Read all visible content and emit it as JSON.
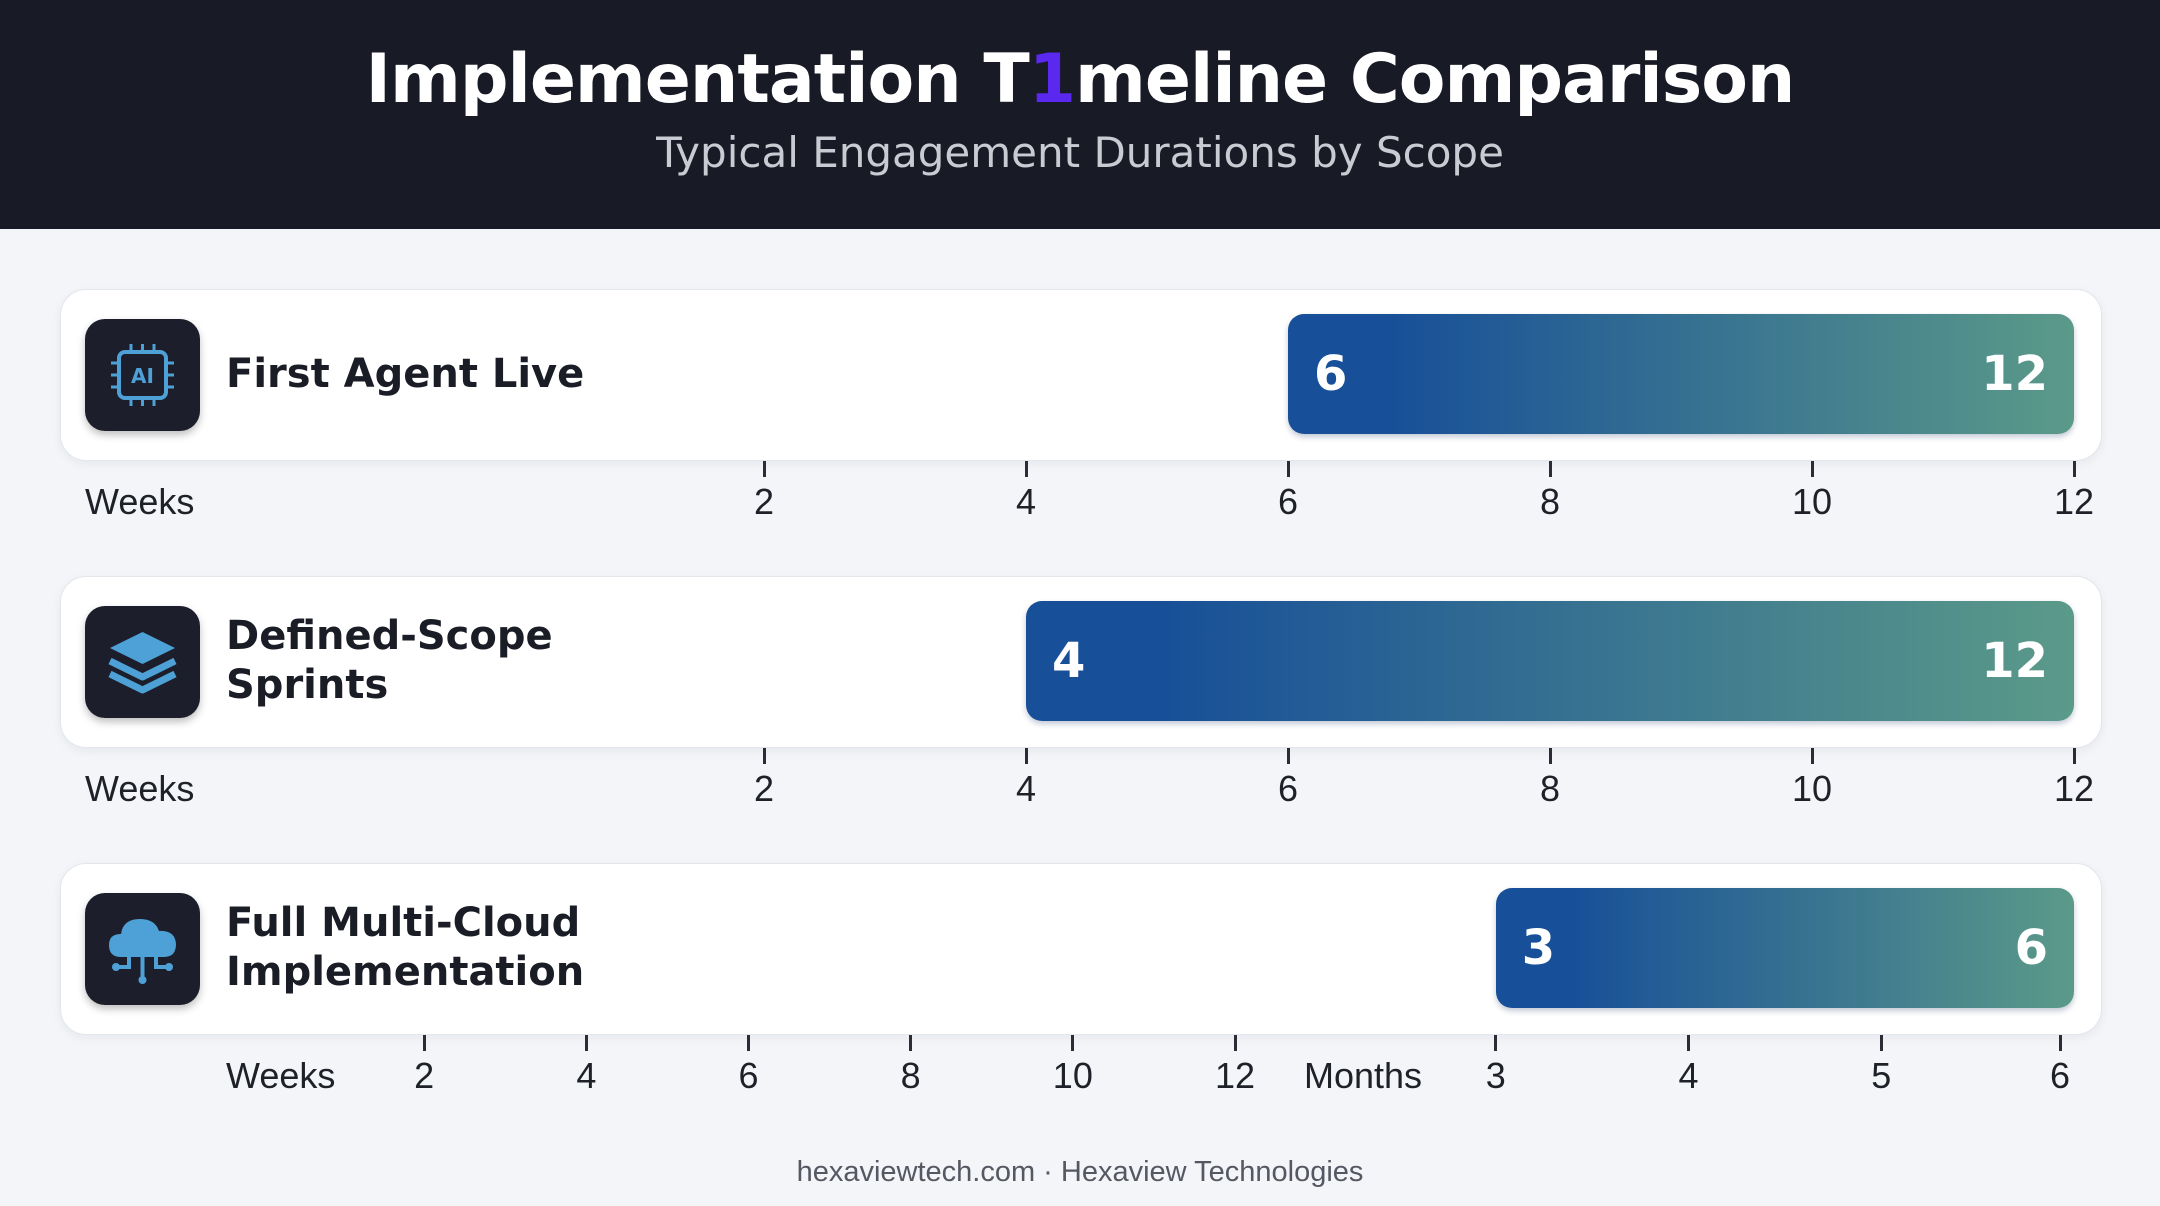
{
  "header": {
    "title": "Implementation T1meline Comparison",
    "subtitle": "Typical Engagement Durations by Scope"
  },
  "footer": {
    "text": "hexaviewtech.com · Hexaview Technologies"
  },
  "colors": {
    "header_bg": "#181a26",
    "title_highlight": "#5a28ee",
    "bar_start": "#174f98",
    "bar_end": "#5b9a89",
    "icon_tile": "#1c1f2b",
    "icon_accent": "#4ea1d6"
  },
  "chart_data": {
    "type": "bar",
    "orientation": "horizontal",
    "title": "Implementation T1meline Comparison",
    "subtitle": "Typical Engagement Durations by Scope",
    "rows": [
      {
        "label": "First Agent Live",
        "icon": "ai-chip-icon",
        "start": 6,
        "end": 12,
        "start_label": "6",
        "end_label": "12",
        "axis": [
          {
            "unit": "Weeks",
            "ticks": [
              "2",
              "4",
              "6",
              "8",
              "10",
              "12"
            ],
            "range": [
              0,
              12
            ]
          }
        ]
      },
      {
        "label": "Defined-Scope\nSprints",
        "icon": "layers-icon",
        "start": 4,
        "end": 12,
        "start_label": "4",
        "end_label": "12",
        "axis": [
          {
            "unit": "Weeks",
            "ticks": [
              "2",
              "4",
              "6",
              "8",
              "10",
              "12"
            ],
            "range": [
              0,
              12
            ]
          }
        ]
      },
      {
        "label": "Full Multi-Cloud\nImplementation",
        "icon": "cloud-network-icon",
        "start": 3,
        "end": 6,
        "start_label": "3",
        "end_label": "6",
        "axis": [
          {
            "unit": "Weeks",
            "ticks": [
              "2",
              "4",
              "6",
              "8",
              "10",
              "12"
            ],
            "range": [
              0,
              12
            ]
          },
          {
            "unit": "Months",
            "ticks": [
              "3",
              "4",
              "5",
              "6"
            ],
            "range": [
              2,
              6
            ]
          }
        ]
      }
    ]
  }
}
